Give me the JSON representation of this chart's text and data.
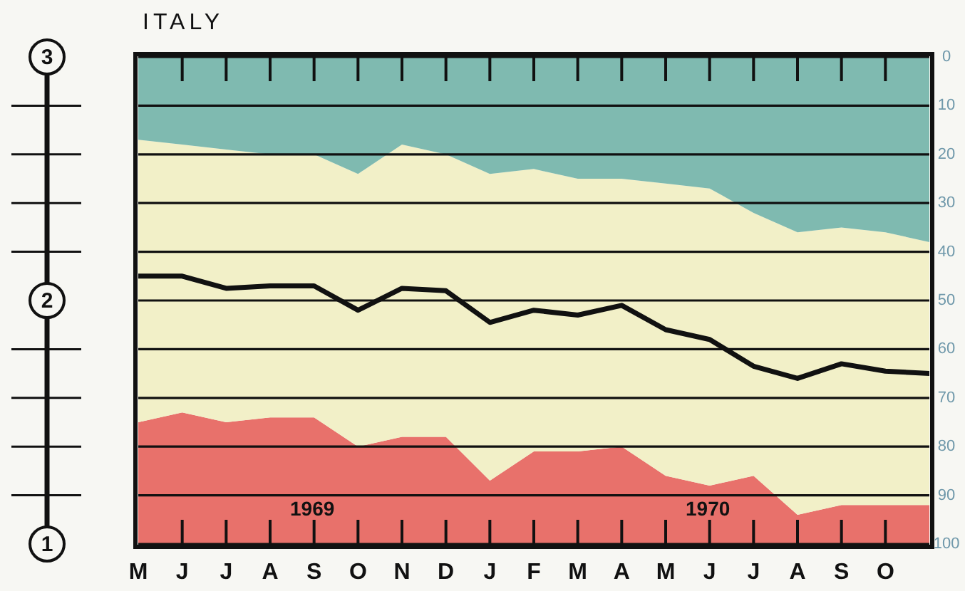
{
  "chart_data": {
    "type": "area",
    "title": "ITALY",
    "stacked": true,
    "categories": [
      "M",
      "J",
      "J",
      "A",
      "S",
      "O",
      "N",
      "D",
      "J",
      "F",
      "M",
      "A",
      "M",
      "J",
      "J",
      "A",
      "S",
      "O",
      null
    ],
    "ylim": [
      100,
      0
    ],
    "yticks": [
      0,
      10,
      20,
      30,
      40,
      50,
      60,
      70,
      80,
      90,
      100
    ],
    "y2lim": [
      1,
      3
    ],
    "y2ticks": [
      1,
      {
        "value": 1.2,
        "label": null
      },
      {
        "value": 1.4,
        "label": null
      },
      {
        "value": 1.6,
        "label": null
      },
      {
        "value": 1.8,
        "label": null
      },
      2,
      {
        "value": 2.2,
        "label": null
      },
      {
        "value": 2.4,
        "label": null
      },
      {
        "value": 2.6,
        "label": null
      },
      {
        "value": 2.8,
        "label": null
      },
      3
    ],
    "grid": "y",
    "legend": false,
    "marker": "none",
    "line_style": "solid",
    "series": [
      {
        "color": "#7fbab0",
        "values": [
          17,
          18,
          19,
          20,
          20,
          24,
          18,
          20,
          24,
          23,
          25,
          25,
          26,
          27,
          32,
          36,
          35,
          36,
          38
        ]
      },
      {
        "color": "#f2f0c8",
        "values": [
          58,
          55,
          56,
          54,
          54,
          56,
          60,
          58,
          63,
          58,
          56,
          55,
          60,
          61,
          54,
          58,
          57,
          56,
          54
        ]
      },
      {
        "color": "#e8716b",
        "values": [
          25,
          27,
          25,
          26,
          26,
          20,
          22,
          22,
          13,
          19,
          19,
          20,
          14,
          12,
          14,
          6,
          8,
          8,
          8
        ]
      },
      {
        "type": "line",
        "axis": "y2",
        "color": "#111111",
        "values": [
          2.1,
          2.1,
          2.05,
          2.06,
          2.06,
          1.96,
          2.05,
          2.04,
          1.91,
          1.96,
          1.94,
          1.98,
          1.88,
          1.84,
          1.73,
          1.68,
          1.74,
          1.71,
          1.7
        ]
      }
    ],
    "annotations": [
      "1969",
      "1970"
    ]
  }
}
